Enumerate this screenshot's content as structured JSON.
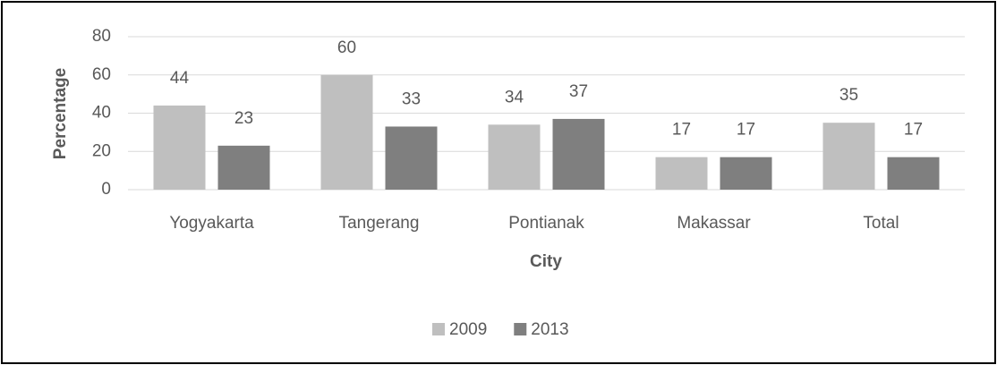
{
  "chart_data": {
    "type": "bar",
    "x_label": "City",
    "y_label": "Percentage",
    "categories": [
      "Yogyakarta",
      "Tangerang",
      "Pontianak",
      "Makassar",
      "Total"
    ],
    "series": [
      {
        "name": "2009",
        "color": "#bfbfbf",
        "values": [
          44,
          60,
          34,
          17,
          35
        ]
      },
      {
        "name": "2013",
        "color": "#7f7f7f",
        "values": [
          23,
          33,
          37,
          17,
          17
        ]
      }
    ],
    "ylim": [
      0,
      80
    ],
    "yticks": [
      0,
      20,
      40,
      60,
      80
    ],
    "grid": true,
    "legend": "bottom"
  }
}
